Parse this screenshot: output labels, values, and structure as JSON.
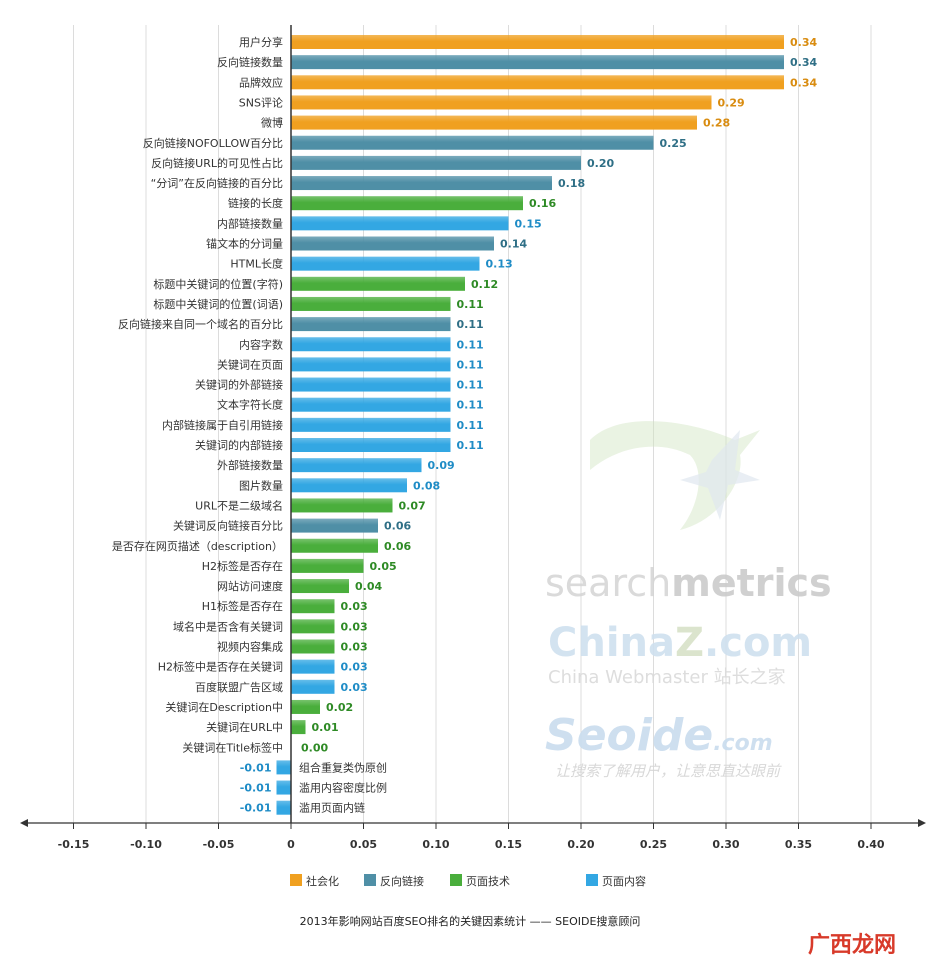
{
  "chart_data": {
    "type": "bar",
    "orientation": "horizontal",
    "title": "2013年影响网站百度SEO排名的关键因素统计 —— SEOIDE搜意顾问",
    "xlim": [
      -0.15,
      0.4
    ],
    "ticks": [
      -0.15,
      -0.1,
      -0.05,
      0,
      0.05,
      0.1,
      0.15,
      0.2,
      0.25,
      0.3,
      0.35,
      0.4
    ],
    "tick_labels": [
      "-0.15",
      "-0.10",
      "-0.05",
      "0",
      "0.05",
      "0.10",
      "0.15",
      "0.20",
      "0.25",
      "0.30",
      "0.35",
      "0.40"
    ],
    "grid": "vertical",
    "legend_position": "bottom",
    "groups": [
      {
        "key": "social",
        "name": "社会化",
        "color": "#f0a020",
        "text_color": "#d98c10"
      },
      {
        "key": "backlink",
        "name": "反向链接",
        "color": "#4f8fa6",
        "text_color": "#2f6f86"
      },
      {
        "key": "tech",
        "name": "页面技术",
        "color": "#4aae3c",
        "text_color": "#2e8a25"
      },
      {
        "key": "content",
        "name": "页面内容",
        "color": "#33a7e3",
        "text_color": "#1f8cc6"
      }
    ],
    "bars": [
      {
        "label": "用户分享",
        "value": 0.34,
        "value_label": "0.34",
        "group": "social"
      },
      {
        "label": "反向链接数量",
        "value": 0.34,
        "value_label": "0.34",
        "group": "backlink"
      },
      {
        "label": "品牌效应",
        "value": 0.34,
        "value_label": "0.34",
        "group": "social"
      },
      {
        "label": "SNS评论",
        "value": 0.29,
        "value_label": "0.29",
        "group": "social"
      },
      {
        "label": "微博",
        "value": 0.28,
        "value_label": "0.28",
        "group": "social"
      },
      {
        "label": "反向链接NOFOLLOW百分比",
        "value": 0.25,
        "value_label": "0.25",
        "group": "backlink"
      },
      {
        "label": "反向链接URL的可见性占比",
        "value": 0.2,
        "value_label": "0.20",
        "group": "backlink"
      },
      {
        "label": "“分词”在反向链接的百分比",
        "value": 0.18,
        "value_label": "0.18",
        "group": "backlink"
      },
      {
        "label": "链接的长度",
        "value": 0.16,
        "value_label": "0.16",
        "group": "tech"
      },
      {
        "label": "内部链接数量",
        "value": 0.15,
        "value_label": "0.15",
        "group": "content"
      },
      {
        "label": "锚文本的分词量",
        "value": 0.14,
        "value_label": "0.14",
        "group": "backlink"
      },
      {
        "label": "HTML长度",
        "value": 0.13,
        "value_label": "0.13",
        "group": "content"
      },
      {
        "label": "标题中关键词的位置(字符)",
        "value": 0.12,
        "value_label": "0.12",
        "group": "tech"
      },
      {
        "label": "标题中关键词的位置(词语)",
        "value": 0.11,
        "value_label": "0.11",
        "group": "tech"
      },
      {
        "label": "反向链接来自同一个域名的百分比",
        "value": 0.11,
        "value_label": "0.11",
        "group": "backlink"
      },
      {
        "label": "内容字数",
        "value": 0.11,
        "value_label": "0.11",
        "group": "content"
      },
      {
        "label": "关键词在页面",
        "value": 0.11,
        "value_label": "0.11",
        "group": "content"
      },
      {
        "label": "关键词的外部链接",
        "value": 0.11,
        "value_label": "0.11",
        "group": "content"
      },
      {
        "label": "文本字符长度",
        "value": 0.11,
        "value_label": "0.11",
        "group": "content"
      },
      {
        "label": "内部链接属于自引用链接",
        "value": 0.11,
        "value_label": "0.11",
        "group": "content"
      },
      {
        "label": "关键词的内部链接",
        "value": 0.11,
        "value_label": "0.11",
        "group": "content"
      },
      {
        "label": "外部链接数量",
        "value": 0.09,
        "value_label": "0.09",
        "group": "content"
      },
      {
        "label": "图片数量",
        "value": 0.08,
        "value_label": "0.08",
        "group": "content"
      },
      {
        "label": "URL不是二级域名",
        "value": 0.07,
        "value_label": "0.07",
        "group": "tech"
      },
      {
        "label": "关键词反向链接百分比",
        "value": 0.06,
        "value_label": "0.06",
        "group": "backlink"
      },
      {
        "label": "是否存在网页描述（description）",
        "value": 0.06,
        "value_label": "0.06",
        "group": "tech"
      },
      {
        "label": "H2标签是否存在",
        "value": 0.05,
        "value_label": "0.05",
        "group": "tech"
      },
      {
        "label": "网站访问速度",
        "value": 0.04,
        "value_label": "0.04",
        "group": "tech"
      },
      {
        "label": "H1标签是否存在",
        "value": 0.03,
        "value_label": "0.03",
        "group": "tech"
      },
      {
        "label": "域名中是否含有关键词",
        "value": 0.03,
        "value_label": "0.03",
        "group": "tech"
      },
      {
        "label": "视频内容集成",
        "value": 0.03,
        "value_label": "0.03",
        "group": "tech"
      },
      {
        "label": "H2标签中是否存在关键词",
        "value": 0.03,
        "value_label": "0.03",
        "group": "content"
      },
      {
        "label": "百度联盟广告区域",
        "value": 0.03,
        "value_label": "0.03",
        "group": "content"
      },
      {
        "label": "关键词在Description中",
        "value": 0.02,
        "value_label": "0.02",
        "group": "tech"
      },
      {
        "label": "关键词在URL中",
        "value": 0.01,
        "value_label": "0.01",
        "group": "tech"
      },
      {
        "label": "关键词在Title标签中",
        "value": 0.0,
        "value_label": "0.00",
        "group": "tech"
      },
      {
        "label": "组合重复类伪原创",
        "value": -0.01,
        "value_label": "-0.01",
        "group": "content"
      },
      {
        "label": "滥用内容密度比例",
        "value": -0.01,
        "value_label": "-0.01",
        "group": "content"
      },
      {
        "label": "滥用页面内链",
        "value": -0.01,
        "value_label": "-0.01",
        "group": "content"
      }
    ]
  },
  "watermarks": {
    "searchmetrics_a": "search",
    "searchmetrics_b": "metrics",
    "china_a": "China",
    "china_b": "Z",
    "china_c": ".com",
    "china_sub": "China Webmaster 站长之家",
    "seoide": "Seoide",
    "seoide_com": ".com",
    "slogan": "让搜索了解用户，让意思直达眼前",
    "corner_logo": "广西龙网"
  }
}
